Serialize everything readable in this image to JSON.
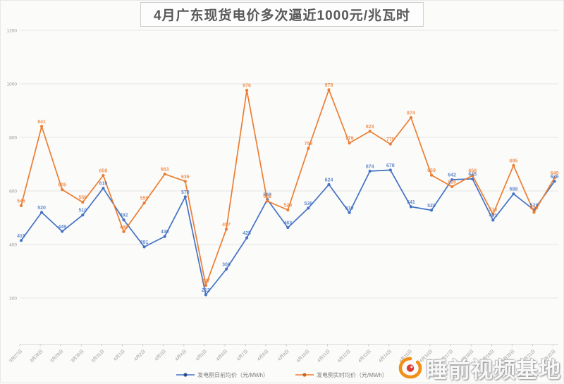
{
  "title": "4月广东现货电价多次逼近1000元/兆瓦时",
  "watermark": {
    "text": "睡前视频基地",
    "icon": "weibo-logo-icon"
  },
  "colors": {
    "day_ahead": "#4472c4",
    "real_time": "#ed7d31",
    "grid": "#e4e4e4",
    "axis_text": "#9a9a9a"
  },
  "chart_data": {
    "type": "line",
    "title": "4月广东现货电价多次逼近1000元/兆瓦时",
    "categories": [
      "3月27日",
      "3月28日",
      "3月29日",
      "3月30日",
      "3月31日",
      "4月1日",
      "4月2日",
      "4月3日",
      "4月4日",
      "4月5日",
      "4月6日",
      "4月7日",
      "4月8日",
      "4月9日",
      "4月10日",
      "4月11日",
      "4月12日",
      "4月13日",
      "4月14日",
      "4月15日",
      "4月16日",
      "4月17日",
      "4月18日",
      "4月19日",
      "4月20日",
      "4月21日",
      "4月22日"
    ],
    "series": [
      {
        "name": "发电侧日前均价（元/MWh）",
        "color": "#4472c4",
        "values": [
          415,
          520,
          449,
          510,
          610,
          492,
          391,
          430,
          578,
          212,
          308,
          425,
          568,
          463,
          536,
          624,
          519,
          674,
          678,
          541,
          528,
          642,
          645,
          491,
          589,
          529,
          636
        ]
      },
      {
        "name": "发电侧实时均价（元/MWh）",
        "color": "#ed7d31",
        "values": [
          545,
          841,
          605,
          558,
          658,
          448,
          555,
          663,
          636,
          247,
          457,
          976,
          562,
          529,
          759,
          978,
          779,
          823,
          775,
          874,
          659,
          616,
          658,
          513,
          695,
          520,
          649
        ]
      }
    ],
    "xlabel": "",
    "ylabel": "",
    "ylim": [
      200,
      1200
    ],
    "y_ticks": [
      200,
      400,
      600,
      800,
      1000,
      1200
    ],
    "grid": true,
    "data_labels": true,
    "legend_position": "bottom"
  }
}
